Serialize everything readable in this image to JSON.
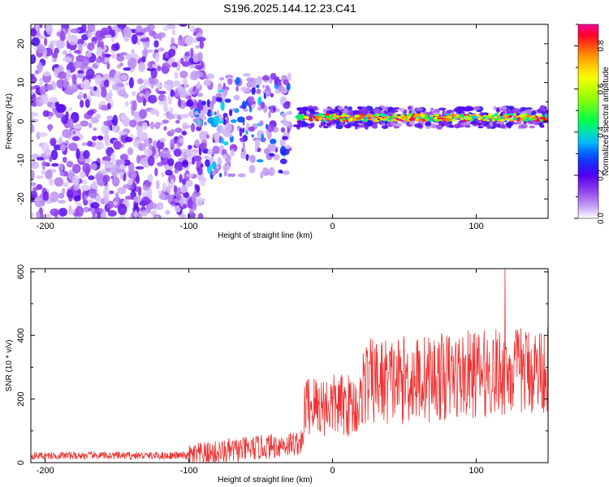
{
  "title": "S196.2025.144.12.23.C41",
  "chart_data": [
    {
      "type": "heatmap",
      "title": "S196.2025.144.12.23.C41",
      "xlabel": "Height of straight line (km)",
      "ylabel": "Frequency (Hz)",
      "xlim": [
        -210,
        150
      ],
      "ylim": [
        -25,
        25
      ],
      "xticks": [
        -200,
        -100,
        0,
        100
      ],
      "yticks": [
        -20,
        -10,
        0,
        10,
        20
      ],
      "colorbar": {
        "label": "Normalized spectral amplitude",
        "range": [
          0.0,
          0.9
        ],
        "ticks": [
          0.0,
          0.2,
          0.4,
          0.6,
          0.8
        ],
        "colormap": "rainbow (white/violet low → red/magenta high)"
      },
      "features": [
        {
          "x_range": [
            -210,
            -95
          ],
          "freq_range": [
            -25,
            25
          ],
          "amplitude": 0.05
        },
        {
          "x_range": [
            -95,
            -30
          ],
          "freq_range": [
            -15,
            12
          ],
          "amplitude": 0.15
        },
        {
          "x_range": [
            -30,
            150
          ],
          "frequency_hz": 1,
          "amplitude": 0.5
        }
      ]
    },
    {
      "type": "line",
      "xlabel": "Height of straight line (km)",
      "ylabel": "SNR (10 * v/v)",
      "xlim": [
        -210,
        150
      ],
      "ylim": [
        0,
        610
      ],
      "xticks": [
        -200,
        -100,
        0,
        100
      ],
      "yticks": [
        0,
        200,
        400,
        600
      ],
      "color": "#ee3333",
      "segments": [
        {
          "x_range": [
            -210,
            -100
          ],
          "mean": 22,
          "spread": 12
        },
        {
          "x_range": [
            -100,
            -20
          ],
          "mean": 50,
          "spread": 40
        },
        {
          "x_range": [
            -20,
            20
          ],
          "mean": 180,
          "spread": 100
        },
        {
          "x_range": [
            20,
            150
          ],
          "mean": 290,
          "spread": 140
        }
      ],
      "peak": {
        "x": 120,
        "y": 610
      }
    }
  ]
}
